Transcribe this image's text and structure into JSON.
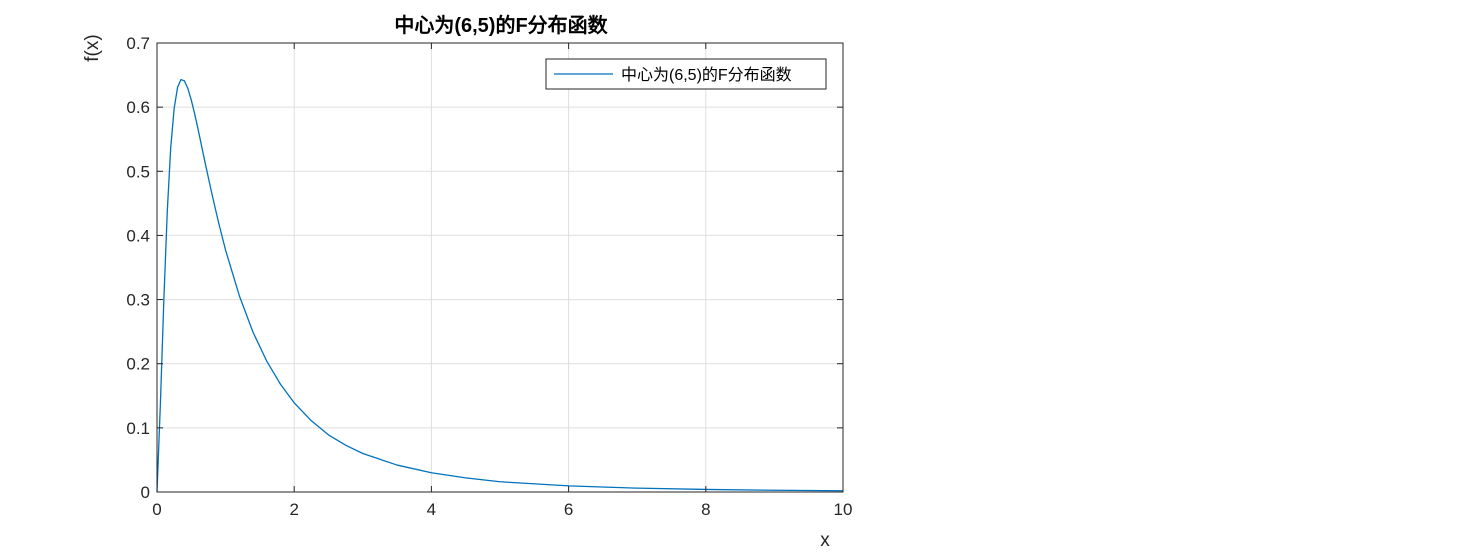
{
  "chart_data": {
    "type": "line",
    "title": "中心为(6,5)的F分布函数",
    "xlabel": "x",
    "ylabel": "f(x)",
    "xlim": [
      0,
      10
    ],
    "ylim": [
      0,
      0.7
    ],
    "xticks": [
      0,
      2,
      4,
      6,
      8,
      10
    ],
    "yticks": [
      0,
      0.1,
      0.2,
      0.3,
      0.4,
      0.5,
      0.6,
      0.7
    ],
    "xtick_labels": [
      "0",
      "2",
      "4",
      "6",
      "8",
      "10"
    ],
    "ytick_labels": [
      "0",
      "0.1",
      "0.2",
      "0.3",
      "0.4",
      "0.5",
      "0.6",
      "0.7"
    ],
    "grid": true,
    "box": true,
    "legend_position": "top-right",
    "series": [
      {
        "name": "中心为(6,5)的F分布函数",
        "color": "#0072bd",
        "x": [
          0,
          0.05,
          0.1,
          0.15,
          0.2,
          0.25,
          0.3,
          0.35,
          0.4,
          0.45,
          0.5,
          0.55,
          0.6,
          0.7,
          0.8,
          0.9,
          1.0,
          1.2,
          1.4,
          1.6,
          1.8,
          2.0,
          2.25,
          2.5,
          2.75,
          3.0,
          3.5,
          4.0,
          4.5,
          5.0,
          6.0,
          7.0,
          8.0,
          9.0,
          10.0
        ],
        "y": [
          0,
          0.139,
          0.3,
          0.438,
          0.537,
          0.598,
          0.631,
          0.643,
          0.641,
          0.629,
          0.611,
          0.589,
          0.565,
          0.514,
          0.465,
          0.419,
          0.377,
          0.306,
          0.249,
          0.204,
          0.168,
          0.139,
          0.111,
          0.089,
          0.073,
          0.06,
          0.042,
          0.03,
          0.022,
          0.016,
          0.0096,
          0.006,
          0.004,
          0.0027,
          0.0019
        ]
      }
    ]
  }
}
